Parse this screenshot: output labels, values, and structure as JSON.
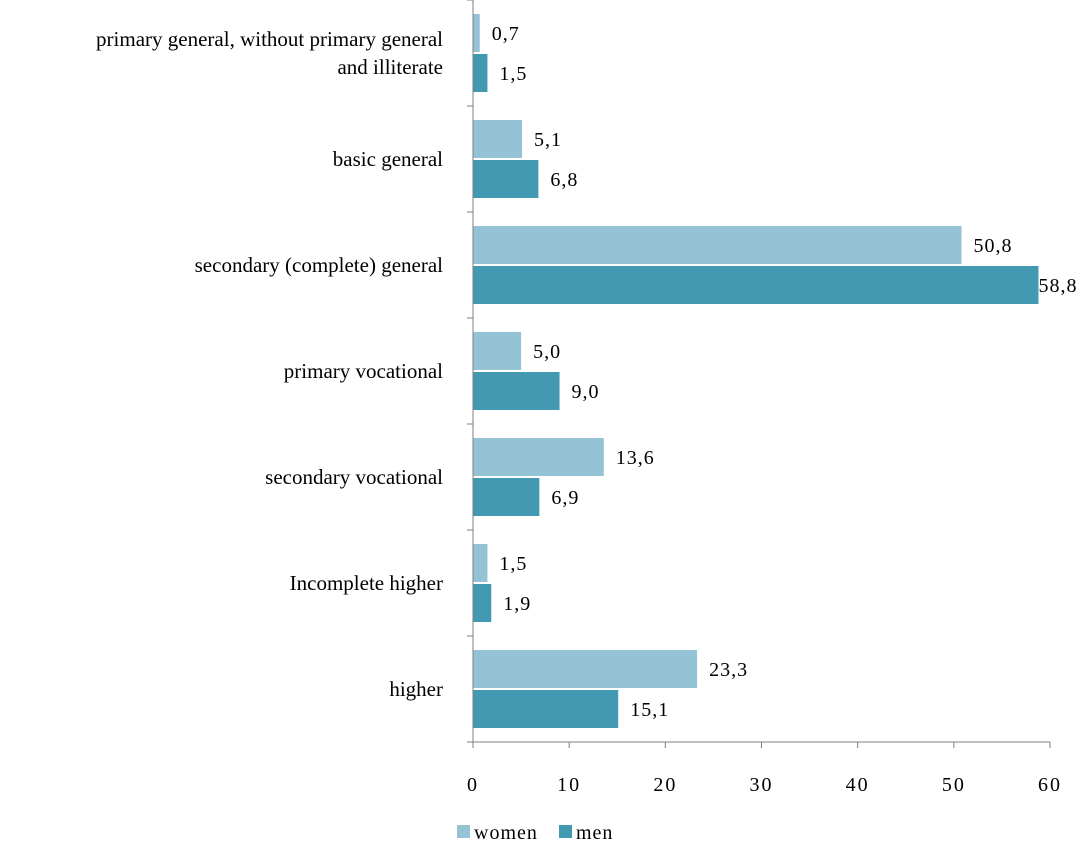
{
  "chart_data": {
    "type": "bar",
    "orientation": "horizontal",
    "categories": [
      "primary general, without primary general and illiterate",
      "basic general",
      "secondary (complete) general",
      "primary vocational",
      "secondary vocational",
      "Incomplete higher",
      "higher"
    ],
    "category_lines": [
      [
        "primary general, without primary general",
        "and illiterate"
      ],
      [
        "basic general"
      ],
      [
        "secondary (complete) general"
      ],
      [
        "primary vocational"
      ],
      [
        "secondary vocational"
      ],
      [
        "Incomplete higher"
      ],
      [
        "higher"
      ]
    ],
    "series": [
      {
        "name": "women",
        "color": "#93c3d5",
        "values": [
          0.7,
          5.1,
          50.8,
          5.0,
          13.6,
          1.5,
          23.3
        ],
        "labels": [
          "0,7",
          "5,1",
          "50,8",
          "5,0",
          "13,6",
          "1,5",
          "23,3"
        ]
      },
      {
        "name": "men",
        "color": "#4299b1",
        "values": [
          1.5,
          6.8,
          58.8,
          9.0,
          6.9,
          1.9,
          15.1
        ],
        "labels": [
          "1,5",
          "6,8",
          "58,8",
          "9,0",
          "6,9",
          "1,9",
          "15,1"
        ]
      }
    ],
    "xlim": [
      0,
      60
    ],
    "xticks": [
      0,
      10,
      20,
      30,
      40,
      50,
      60
    ],
    "grid": false,
    "legend_position": "bottom"
  }
}
